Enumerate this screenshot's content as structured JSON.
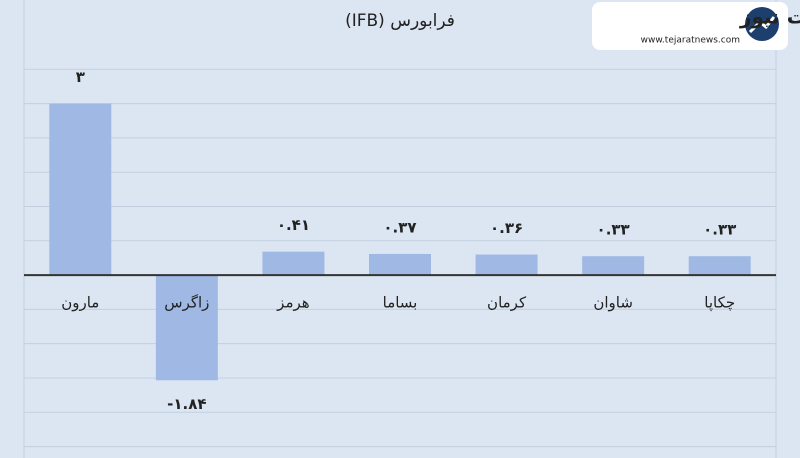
{
  "chart_data": {
    "type": "bar",
    "title": "فرابورس (IFB)",
    "categories": [
      "مارون",
      "زاگرس",
      "هرمز",
      "بساما",
      "کرمان",
      "شاوان",
      "چکاپا"
    ],
    "values": [
      3,
      -1.84,
      0.41,
      0.37,
      0.36,
      0.33,
      0.33
    ],
    "value_labels": [
      "۳",
      "-۱.۸۴",
      "۰.۴۱",
      "۰.۳۷",
      "۰.۳۶",
      "۰.۳۳",
      "۰.۳۳"
    ],
    "color": "#a0b9e4",
    "ylim": [
      -3.2,
      4.2
    ],
    "yticks": [
      -3,
      -2.4,
      -1.8,
      -1.2,
      -0.6,
      0,
      0.6,
      1.2,
      1.8,
      2.4,
      3,
      3.6
    ],
    "grid": true
  },
  "logo": {
    "name": "تجارت نیوز",
    "url": "www.tejaratnews.com"
  }
}
